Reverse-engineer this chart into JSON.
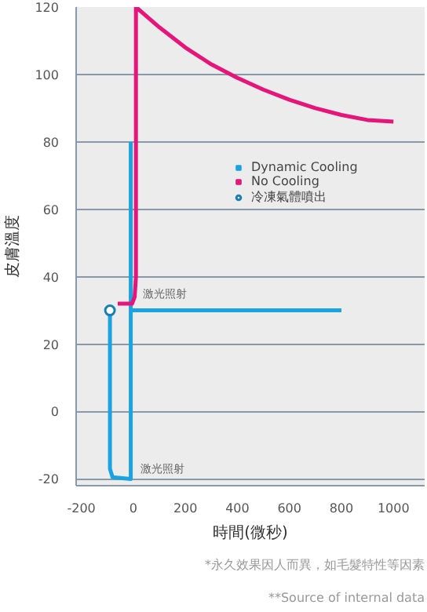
{
  "chart_data": {
    "type": "line",
    "xlabel": "時間(微秒)",
    "ylabel": "皮膚溫度",
    "series": [
      {
        "name": "Dynamic Cooling",
        "color": "#1aa3e0",
        "x": [
          -90,
          -90,
          -80,
          -10,
          -10,
          null,
          -10,
          800
        ],
        "values": [
          30,
          -17,
          -19.5,
          -20,
          80,
          null,
          30,
          30
        ]
      },
      {
        "name": "No Cooling",
        "color": "#e6157a",
        "x": [
          -60,
          -5,
          5,
          10,
          10,
          100,
          200,
          300,
          400,
          500,
          600,
          700,
          800,
          900,
          1000
        ],
        "values": [
          32,
          32,
          34,
          40,
          120,
          114,
          108,
          103,
          99,
          95.5,
          92.5,
          90,
          88,
          86.5,
          86
        ]
      },
      {
        "name": "冷凍氣體噴出",
        "type": "scatter",
        "marker": "circle",
        "color": "#1a7fb0",
        "x": [
          -90
        ],
        "values": [
          30
        ]
      }
    ],
    "xlim": [
      -220,
      1120
    ],
    "ylim": [
      -22,
      120
    ],
    "xticks": [
      -200,
      0,
      200,
      400,
      600,
      800,
      1000
    ],
    "yticks": [
      -20,
      0,
      20,
      40,
      60,
      80,
      100,
      120
    ],
    "grid": "y",
    "legend": "right",
    "annotations": [
      {
        "text": "激光照射",
        "x": 0,
        "y": 32
      },
      {
        "text": "激光照射",
        "x": -10,
        "y": -20
      },
      "*永久效果因人而異，如毛髮特性等因素",
      "**Source of internal data"
    ]
  }
}
